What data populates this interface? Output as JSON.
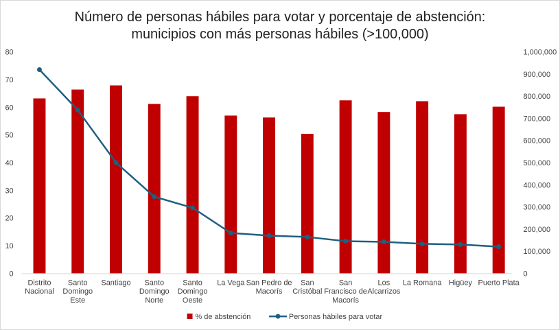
{
  "chart_data": {
    "type": "bar+line",
    "title": [
      "Número de personas hábiles para votar y porcentaje de abstención:",
      "municipios con más personas hábiles (>100,000)"
    ],
    "categories": [
      [
        "Distrito",
        "Nacional"
      ],
      [
        "Santo",
        "Domingo",
        "Este"
      ],
      [
        "Santiago"
      ],
      [
        "Santo",
        "Domingo",
        "Norte"
      ],
      [
        "Santo",
        "Domingo",
        "Oeste"
      ],
      [
        "La Vega"
      ],
      [
        "San Pedro de",
        "Macorís"
      ],
      [
        "San",
        "Cristóbal"
      ],
      [
        "San",
        "Francisco de",
        "Macorís"
      ],
      [
        "Los",
        "Alcarrizos"
      ],
      [
        "La Romana"
      ],
      [
        "Higüey"
      ],
      [
        "Puerto Plata"
      ]
    ],
    "series": [
      {
        "name": "% de abstención",
        "type": "bar",
        "axis": "left",
        "color": "#c00000",
        "values": [
          63.2,
          66.4,
          67.9,
          61.2,
          64.0,
          57.0,
          56.3,
          50.4,
          62.5,
          58.3,
          62.2,
          57.5,
          60.2
        ]
      },
      {
        "name": "Personas hábiles para votar",
        "type": "line",
        "axis": "right",
        "color": "#1f5f7f",
        "values": [
          920000,
          738000,
          500000,
          346000,
          296000,
          182000,
          170000,
          164000,
          145000,
          142000,
          133000,
          130000,
          120000
        ]
      }
    ],
    "left_axis": {
      "ylim": [
        0,
        80
      ],
      "ticks": [
        "0",
        "10",
        "20",
        "30",
        "40",
        "50",
        "60",
        "70",
        "80"
      ]
    },
    "right_axis": {
      "ylim": [
        0,
        1000000
      ],
      "ticks": [
        "0",
        "100,000",
        "200,000",
        "300,000",
        "400,000",
        "500,000",
        "600,000",
        "700,000",
        "800,000",
        "900,000",
        "1,000,000"
      ]
    },
    "legend_position": "bottom",
    "grid": false
  }
}
